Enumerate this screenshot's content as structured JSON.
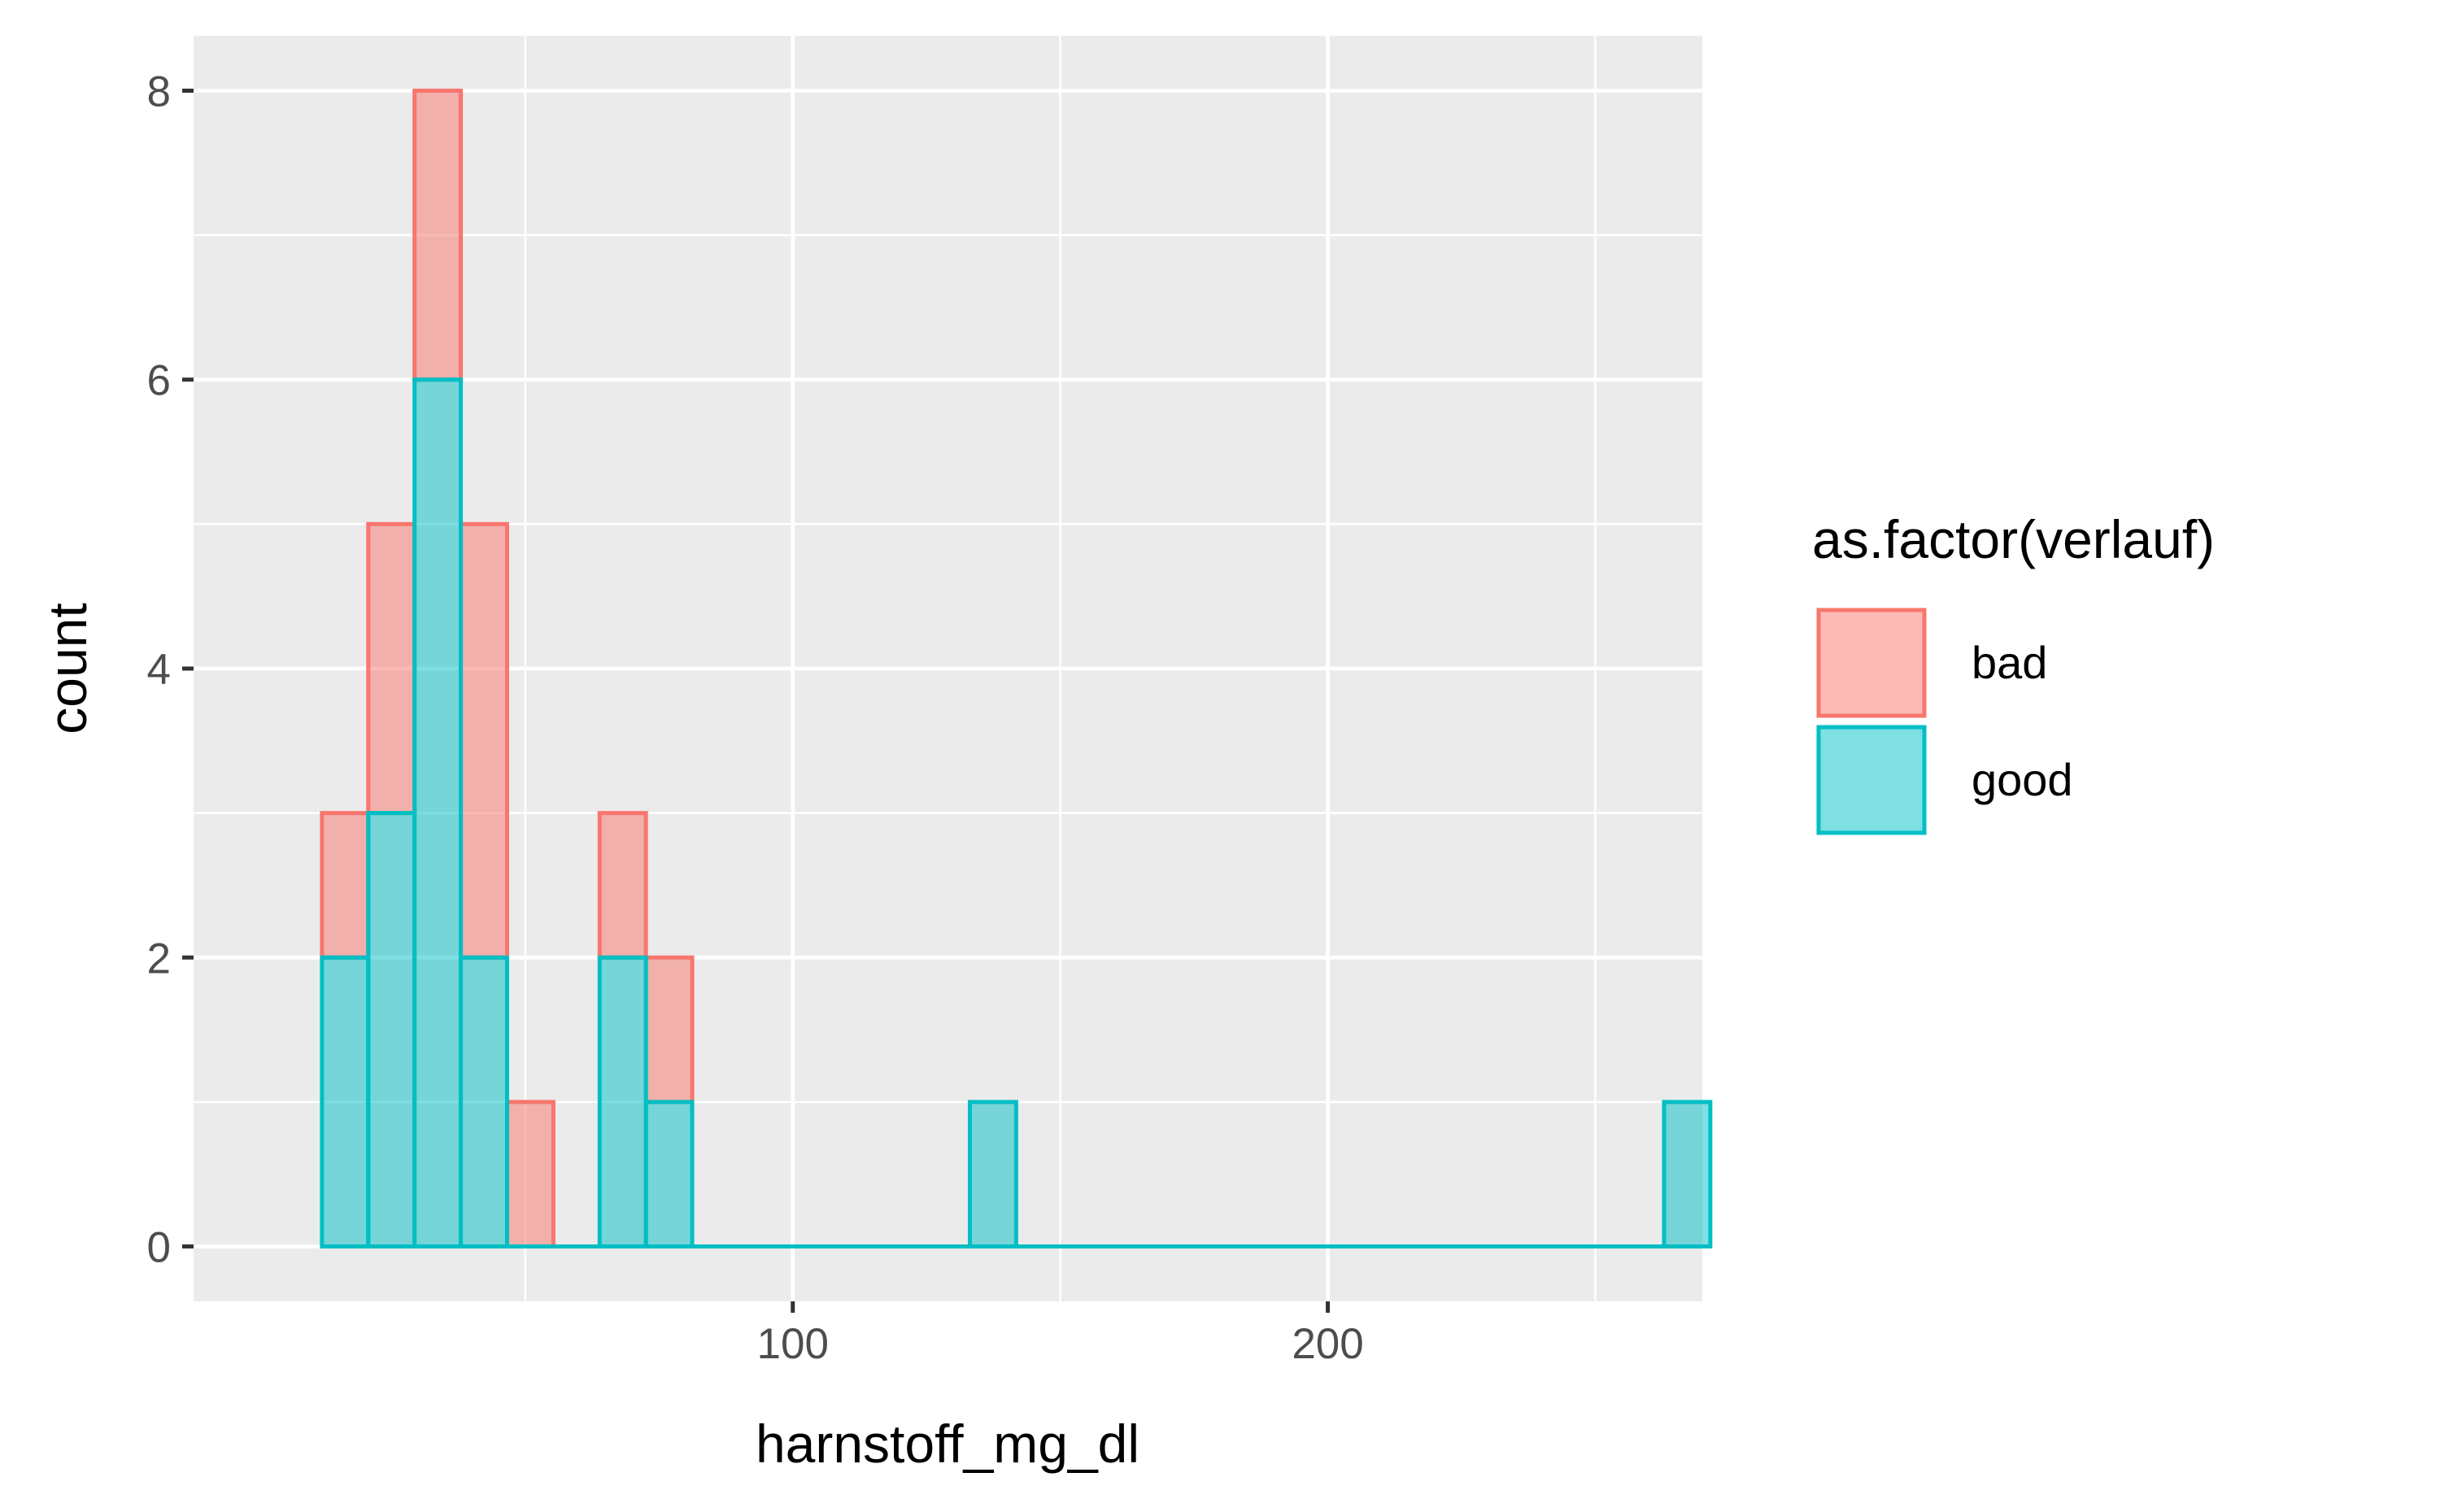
{
  "chart_data": {
    "type": "histogram",
    "title": "",
    "xlabel": "harnstoff_mg_dl",
    "ylabel": "count",
    "xlim": [
      -12,
      270
    ],
    "ylim": [
      -0.38,
      8.38
    ],
    "x_ticks": [
      100,
      200
    ],
    "y_ticks": [
      0,
      2,
      4,
      6,
      8
    ],
    "grid": true,
    "position": "stacked",
    "bin_width": 8.65,
    "bin_starts": [
      12.0,
      20.65,
      29.3,
      37.95,
      46.6,
      55.25,
      63.9,
      72.55,
      81.2,
      89.85,
      98.5,
      107.15,
      115.8,
      124.45,
      133.1,
      141.75,
      150.4,
      159.05,
      167.7,
      176.35,
      185.0,
      193.65,
      202.3,
      210.95,
      219.6,
      228.25,
      236.9,
      245.55,
      254.2,
      262.85
    ],
    "series": [
      {
        "name": "bad",
        "color": "#F8766D",
        "values": [
          1,
          2,
          2,
          3,
          1,
          0,
          1,
          1,
          0,
          0,
          0,
          0,
          0,
          0,
          0,
          0,
          0,
          0,
          0,
          0,
          0,
          0,
          0,
          0,
          0,
          0,
          0,
          0,
          0,
          0
        ]
      },
      {
        "name": "good",
        "color": "#00BFC4",
        "values": [
          2,
          3,
          6,
          2,
          0,
          0,
          2,
          1,
          0,
          0,
          0,
          0,
          0,
          0,
          1,
          0,
          0,
          0,
          0,
          0,
          0,
          0,
          0,
          0,
          0,
          0,
          0,
          0,
          0,
          1
        ]
      }
    ],
    "legend": {
      "title": "as.factor(verlauf)",
      "position": "right",
      "items": [
        "bad",
        "good"
      ]
    }
  }
}
